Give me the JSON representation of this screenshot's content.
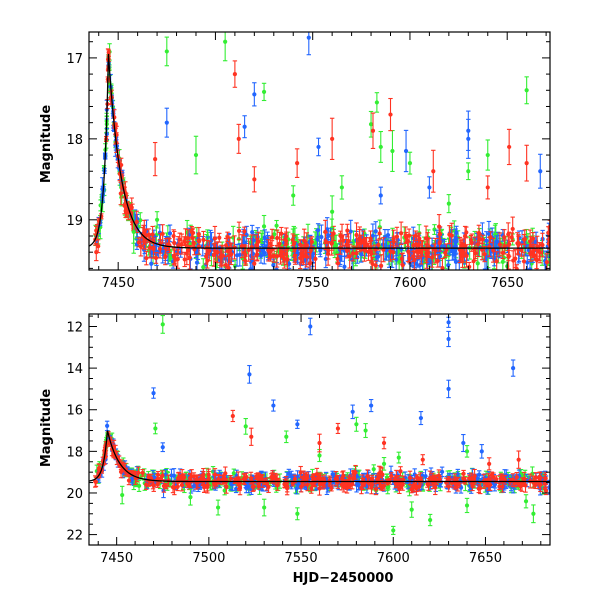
{
  "colors": {
    "green": "#33ee33",
    "blue": "#2266ff",
    "red": "#ff3322",
    "model": "#000000"
  },
  "chart_data": [
    {
      "type": "scatter",
      "title": "",
      "xlabel": "",
      "ylabel": "Magnitude",
      "xlim": [
        7435,
        7672
      ],
      "ylim": [
        19.62,
        16.68
      ],
      "y_inverted": true,
      "x_ticks": [
        7450,
        7500,
        7550,
        7600,
        7650
      ],
      "x_tick_labels": [
        "7450",
        "7500",
        "7550",
        "7600",
        "7650"
      ],
      "y_ticks": [
        17,
        18,
        19
      ],
      "y_tick_labels": [
        "17",
        "18",
        "19"
      ],
      "grid": false,
      "legend": "none",
      "error_bars": true,
      "series": [
        {
          "color": "green",
          "points": [
            [
              7475,
              16.92
            ],
            [
              7505,
              16.8
            ],
            [
              7525,
              17.42
            ],
            [
              7580,
              17.82
            ],
            [
              7583,
              17.55
            ],
            [
              7660,
              17.4
            ],
            [
              7640,
              18.2
            ],
            [
              7600,
              18.3
            ],
            [
              7565,
              18.6
            ],
            [
              7490,
              18.2
            ],
            [
              7630,
              18.4
            ],
            [
              7585,
              18.1
            ],
            [
              7591,
              18.15
            ],
            [
              7470,
              19.0
            ],
            [
              7458,
              19.15
            ],
            [
              7560,
              18.9
            ],
            [
              7620,
              18.8
            ],
            [
              7540,
              18.7
            ]
          ]
        },
        {
          "color": "blue",
          "points": [
            [
              7548,
              16.75
            ],
            [
              7515,
              17.85
            ],
            [
              7520,
              17.45
            ],
            [
              7475,
              17.8
            ],
            [
              7630,
              17.9
            ],
            [
              7630,
              18.0
            ],
            [
              7585,
              18.7
            ],
            [
              7598,
              18.15
            ],
            [
              7553,
              18.1
            ],
            [
              7610,
              18.6
            ],
            [
              7667,
              18.4
            ]
          ]
        },
        {
          "color": "red",
          "points": [
            [
              7510,
              17.2
            ],
            [
              7512,
              18.0
            ],
            [
              7542,
              18.3
            ],
            [
              7581,
              17.9
            ],
            [
              7651,
              18.1
            ],
            [
              7612,
              18.4
            ],
            [
              7469,
              18.25
            ],
            [
              7560,
              18.0
            ],
            [
              7520,
              18.5
            ],
            [
              7640,
              18.6
            ],
            [
              7590,
              17.7
            ],
            [
              7660,
              18.3
            ]
          ]
        }
      ],
      "lightcurve": {
        "peak_hjd": 7445,
        "peak_mag": 16.95,
        "baseline_mag": 19.35,
        "envelope_half_range_mag": 0.3
      }
    },
    {
      "type": "scatter",
      "title": "",
      "xlabel": "HJD−2450000",
      "ylabel": "Magnitude",
      "xlim": [
        7435,
        7685
      ],
      "ylim": [
        22.5,
        11.4
      ],
      "y_inverted": true,
      "x_ticks": [
        7450,
        7500,
        7550,
        7600,
        7650
      ],
      "x_tick_labels": [
        "7450",
        "7500",
        "7550",
        "7600",
        "7650"
      ],
      "y_ticks": [
        12,
        14,
        16,
        18,
        20,
        22
      ],
      "y_tick_labels": [
        "12",
        "14",
        "16",
        "18",
        "20",
        "22"
      ],
      "grid": false,
      "legend": "none",
      "error_bars": true,
      "series": [
        {
          "color": "green",
          "points": [
            [
              7475,
              11.9
            ],
            [
              7471,
              16.9
            ],
            [
              7580,
              16.7
            ],
            [
              7585,
              17.0
            ],
            [
              7595,
              18.6
            ],
            [
              7603,
              18.3
            ],
            [
              7610,
              20.8
            ],
            [
              7620,
              21.3
            ],
            [
              7600,
              21.8
            ],
            [
              7640,
              20.6
            ],
            [
              7548,
              21.0
            ],
            [
              7530,
              20.7
            ],
            [
              7505,
              20.7
            ],
            [
              7490,
              20.2
            ],
            [
              7453,
              20.1
            ],
            [
              7640,
              18.0
            ],
            [
              7560,
              18.2
            ],
            [
              7672,
              20.4
            ],
            [
              7676,
              21.0
            ],
            [
              7520,
              16.8
            ],
            [
              7542,
              17.3
            ]
          ]
        },
        {
          "color": "blue",
          "points": [
            [
              7630,
              11.8
            ],
            [
              7630,
              12.6
            ],
            [
              7555,
              12.0
            ],
            [
              7665,
              14.0
            ],
            [
              7470,
              15.2
            ],
            [
              7522,
              14.3
            ],
            [
              7630,
              15.0
            ],
            [
              7535,
              15.8
            ],
            [
              7588,
              15.8
            ],
            [
              7578,
              16.1
            ],
            [
              7615,
              16.4
            ],
            [
              7548,
              16.7
            ],
            [
              7475,
              17.8
            ],
            [
              7648,
              18.0
            ],
            [
              7638,
              17.6
            ]
          ]
        },
        {
          "color": "red",
          "points": [
            [
              7513,
              16.3
            ],
            [
              7523,
              17.3
            ],
            [
              7560,
              17.6
            ],
            [
              7570,
              16.9
            ],
            [
              7595,
              17.6
            ],
            [
              7616,
              18.4
            ],
            [
              7652,
              18.6
            ],
            [
              7668,
              18.4
            ]
          ]
        }
      ],
      "lightcurve": {
        "peak_hjd": 7445,
        "peak_mag": 17.0,
        "baseline_mag": 19.45,
        "envelope_half_range_mag": 0.55
      }
    }
  ]
}
